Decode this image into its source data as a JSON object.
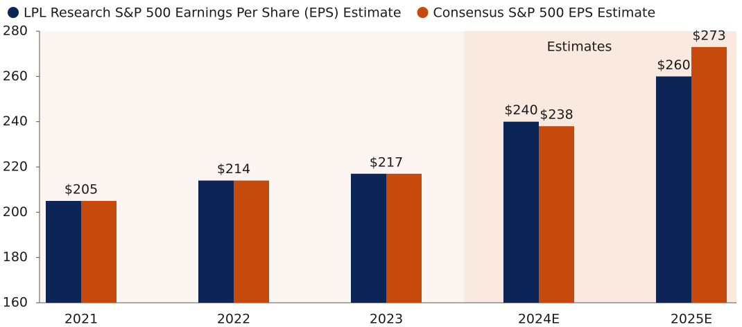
{
  "chart_data": {
    "type": "bar",
    "categories": [
      "2021",
      "2022",
      "2023",
      "2024E",
      "2025E"
    ],
    "series": [
      {
        "name": "LPL Research S&P 500 Earnings Per Share (EPS) Estimate",
        "color": "#0c2456",
        "values": [
          205,
          214,
          217,
          240,
          260
        ],
        "value_labels": [
          "$205",
          "$214",
          "$217",
          "$240",
          "$260"
        ]
      },
      {
        "name": "Consensus S&P 500 EPS Estimate",
        "color": "#c64a0b",
        "values": [
          205,
          214,
          217,
          238,
          273
        ],
        "value_labels": [
          null,
          null,
          null,
          "$238",
          "$273"
        ]
      }
    ],
    "ylim": [
      160,
      280
    ],
    "yticks": [
      160,
      180,
      200,
      220,
      240,
      260,
      280
    ],
    "annotation": {
      "text": "Estimates",
      "from": "2024E"
    },
    "background": "#fcf5f1",
    "shade_color": "#f9e9df",
    "grid": false
  }
}
